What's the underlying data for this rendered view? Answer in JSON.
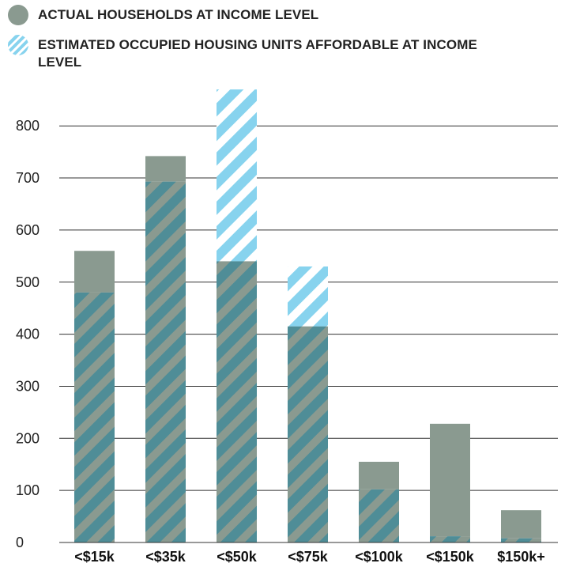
{
  "legend": {
    "actual_label": "ACTUAL HOUSEHOLDS AT INCOME LEVEL",
    "affordable_label": "ESTIMATED OCCUPIED HOUSING UNITS AFFORDABLE AT INCOME LEVEL"
  },
  "colors": {
    "actual": "#8a9a90",
    "affordable": "#87d3ee",
    "overlap_stripe": "#4f8d97",
    "gridline": "#333333"
  },
  "chart_data": {
    "type": "bar",
    "categories": [
      "<$15k",
      "<$35k",
      "<$50k",
      "<$75k",
      "<$100k",
      "<$150k",
      "$150k+"
    ],
    "series": [
      {
        "name": "ACTUAL HOUSEHOLDS AT INCOME LEVEL",
        "values": [
          560,
          742,
          540,
          415,
          155,
          228,
          62
        ]
      },
      {
        "name": "ESTIMATED OCCUPIED HOUSING UNITS AFFORDABLE AT INCOME LEVEL",
        "values": [
          480,
          693,
          870,
          530,
          102,
          12,
          8
        ]
      }
    ],
    "yticks": [
      0,
      100,
      200,
      300,
      400,
      500,
      600,
      700,
      800
    ],
    "ylim": [
      0,
      870
    ],
    "grid": true,
    "legend_position": "top-left"
  }
}
